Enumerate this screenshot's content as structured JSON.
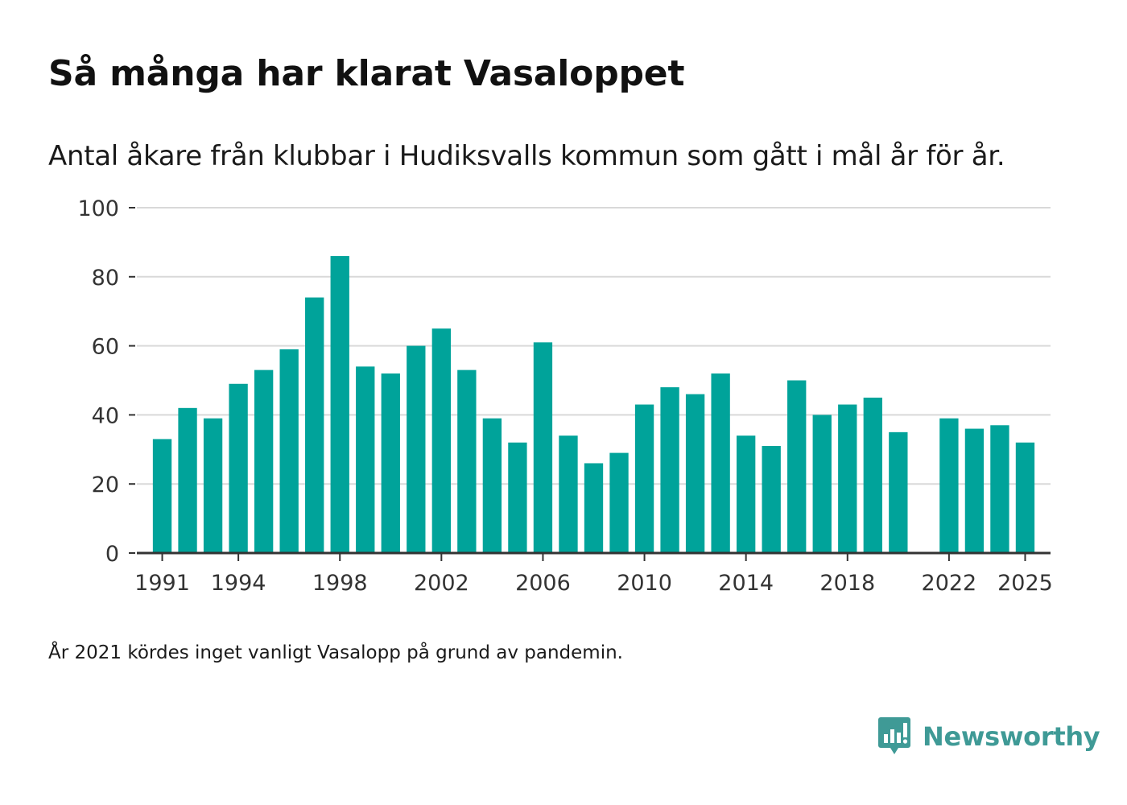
{
  "title": "Så många har klarat Vasaloppet",
  "subtitle": "Antal åkare från klubbar i Hudiksvalls kommun som gått i mål år för år.",
  "footnote": "År 2021 kördes inget vanligt Vasalopp på grund av pandemin.",
  "brand": {
    "name": "Newsworthy",
    "icon": "newsworthy-logo-icon",
    "color": "#3f9a96"
  },
  "colors": {
    "bar": "#00a39a",
    "grid": "#d9d9d9",
    "axis": "#333333"
  },
  "chart_data": {
    "type": "bar",
    "title": "Så många har klarat Vasaloppet",
    "subtitle": "Antal åkare från klubbar i Hudiksvalls kommun som gått i mål år för år.",
    "xlabel": "",
    "ylabel": "",
    "ylim": [
      0,
      100
    ],
    "yticks": [
      0,
      20,
      40,
      60,
      80,
      100
    ],
    "xlim": [
      1990,
      2026
    ],
    "xticks": [
      1991,
      1994,
      1998,
      2002,
      2006,
      2010,
      2014,
      2018,
      2022,
      2025
    ],
    "grid": true,
    "categories": [
      1991,
      1992,
      1993,
      1994,
      1995,
      1996,
      1997,
      1998,
      1999,
      2000,
      2001,
      2002,
      2003,
      2004,
      2005,
      2006,
      2007,
      2008,
      2009,
      2010,
      2011,
      2012,
      2013,
      2014,
      2015,
      2016,
      2017,
      2018,
      2019,
      2020,
      2022,
      2023,
      2024,
      2025
    ],
    "values": [
      33,
      42,
      39,
      49,
      53,
      59,
      74,
      86,
      54,
      52,
      60,
      65,
      53,
      39,
      32,
      61,
      34,
      26,
      29,
      43,
      48,
      46,
      52,
      34,
      31,
      50,
      40,
      43,
      45,
      35,
      39,
      36,
      37,
      32
    ]
  }
}
